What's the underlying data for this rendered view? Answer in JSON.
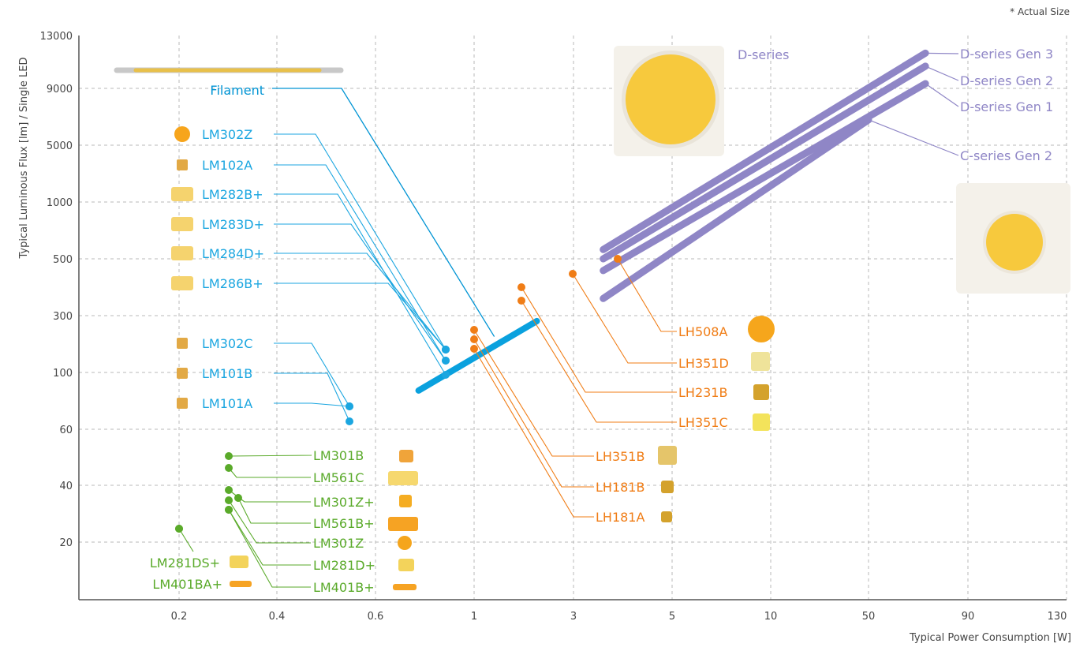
{
  "chart_data": {
    "type": "scatter",
    "title": "",
    "note": "* Actual Size",
    "xlabel": "Typical Power Consumption [W]",
    "ylabel": "Typical Luminous Flux [lm] / Single LED",
    "x_ticks": [
      "0.2",
      "0.4",
      "0.6",
      "1",
      "3",
      "5",
      "10",
      "50",
      "90",
      "130"
    ],
    "y_ticks": [
      "20",
      "40",
      "60",
      "100",
      "300",
      "500",
      "1000",
      "5000",
      "9000",
      "13000"
    ],
    "grid": true,
    "colors": {
      "filament_mid": "#0094d4",
      "mid_power_blue": "#1ba6e0",
      "mid_power_green": "#5aaa2a",
      "high_power": "#f07d16",
      "cob": "#8f86c6",
      "grid": "#b8b8b8",
      "axis": "#555555"
    },
    "series": [
      {
        "name": "Filament",
        "group": "filament",
        "x": 1.25,
        "y": 200,
        "x2": 2,
        "y2": 270,
        "x1": 0.75,
        "y1": 85
      },
      {
        "name": "LM302Z",
        "group": "blue",
        "x": 0.75,
        "y": 150
      },
      {
        "name": "LM102A",
        "group": "blue",
        "x": 0.75,
        "y": 125
      },
      {
        "name": "LM282B+",
        "group": "blue",
        "x": 0.75,
        "y": 112
      },
      {
        "name": "LM283D+",
        "group": "blue",
        "x": 0.75,
        "y": 112
      },
      {
        "name": "LM284D+",
        "group": "blue",
        "x": 0.75,
        "y": 125
      },
      {
        "name": "LM286B+",
        "group": "blue",
        "x": 0.75,
        "y": 150
      },
      {
        "name": "LM302C",
        "group": "blue",
        "x": 0.55,
        "y": 80
      },
      {
        "name": "LM101B",
        "group": "blue",
        "x": 0.55,
        "y": 65
      },
      {
        "name": "LM101A",
        "group": "blue",
        "x": 0.55,
        "y": 80
      },
      {
        "name": "LM301B",
        "group": "green",
        "x": 0.3,
        "y": 50
      },
      {
        "name": "LM561C",
        "group": "green",
        "x": 0.3,
        "y": 46
      },
      {
        "name": "LM301Z+",
        "group": "green",
        "x": 0.3,
        "y": 38
      },
      {
        "name": "LM561B+",
        "group": "green",
        "x": 0.32,
        "y": 36
      },
      {
        "name": "LM301Z",
        "group": "green",
        "x": 0.3,
        "y": 35
      },
      {
        "name": "LM281D+",
        "group": "green",
        "x": 0.3,
        "y": 32
      },
      {
        "name": "LM401B+",
        "group": "green",
        "x": 0.3,
        "y": 32
      },
      {
        "name": "LM281DS+",
        "group": "green",
        "x": 0.2,
        "y": 25
      },
      {
        "name": "LM401BA+",
        "group": "green",
        "x": 0.2,
        "y": 25
      },
      {
        "name": "LH181A",
        "group": "orange",
        "x": 1,
        "y": 175
      },
      {
        "name": "LH181B",
        "group": "orange",
        "x": 1,
        "y": 210
      },
      {
        "name": "LH351B",
        "group": "orange",
        "x": 1,
        "y": 240
      },
      {
        "name": "LH351C",
        "group": "orange",
        "x": 2,
        "y": 350
      },
      {
        "name": "LH231B",
        "group": "orange",
        "x": 2,
        "y": 400
      },
      {
        "name": "LH351D",
        "group": "orange",
        "x": 3,
        "y": 450
      },
      {
        "name": "LH508A",
        "group": "orange",
        "x": 4,
        "y": 500
      },
      {
        "name": "C-series Gen 2",
        "group": "cob",
        "x1": 3.5,
        "y1": 350,
        "x2": 50,
        "y2": 6500
      },
      {
        "name": "D-series Gen 1",
        "group": "cob",
        "x1": 3.5,
        "y1": 450,
        "x2": 70,
        "y2": 9300
      },
      {
        "name": "D-series Gen 2",
        "group": "cob",
        "x1": 3.5,
        "y1": 500,
        "x2": 70,
        "y2": 10500
      },
      {
        "name": "D-series Gen 3",
        "group": "cob",
        "x1": 3.5,
        "y1": 560,
        "x2": 70,
        "y2": 11500
      }
    ],
    "images": [
      {
        "label": "D-series"
      }
    ]
  }
}
